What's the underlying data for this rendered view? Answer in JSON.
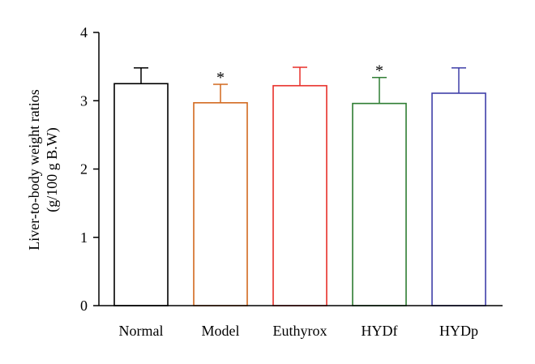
{
  "chart_data": {
    "type": "bar",
    "categories": [
      "Normal",
      "Model",
      "Euthyrox",
      "HYDf",
      "HYDp"
    ],
    "values": [
      3.25,
      2.97,
      3.22,
      2.96,
      3.11
    ],
    "error_plus": [
      0.23,
      0.27,
      0.27,
      0.38,
      0.37
    ],
    "significance": [
      "",
      "*",
      "",
      "*",
      ""
    ],
    "colors": [
      "#000000",
      "#d2691e",
      "#e8302a",
      "#2e7d32",
      "#3f3fa8"
    ],
    "ylabel_lines": [
      "Liver-to-body weight ratios",
      "(g/100 g B.W)"
    ],
    "xlabel": "",
    "title": "",
    "ylim": [
      0,
      4
    ],
    "yticks": [
      0,
      1,
      2,
      3,
      4
    ],
    "grid": false,
    "legend": "none"
  }
}
